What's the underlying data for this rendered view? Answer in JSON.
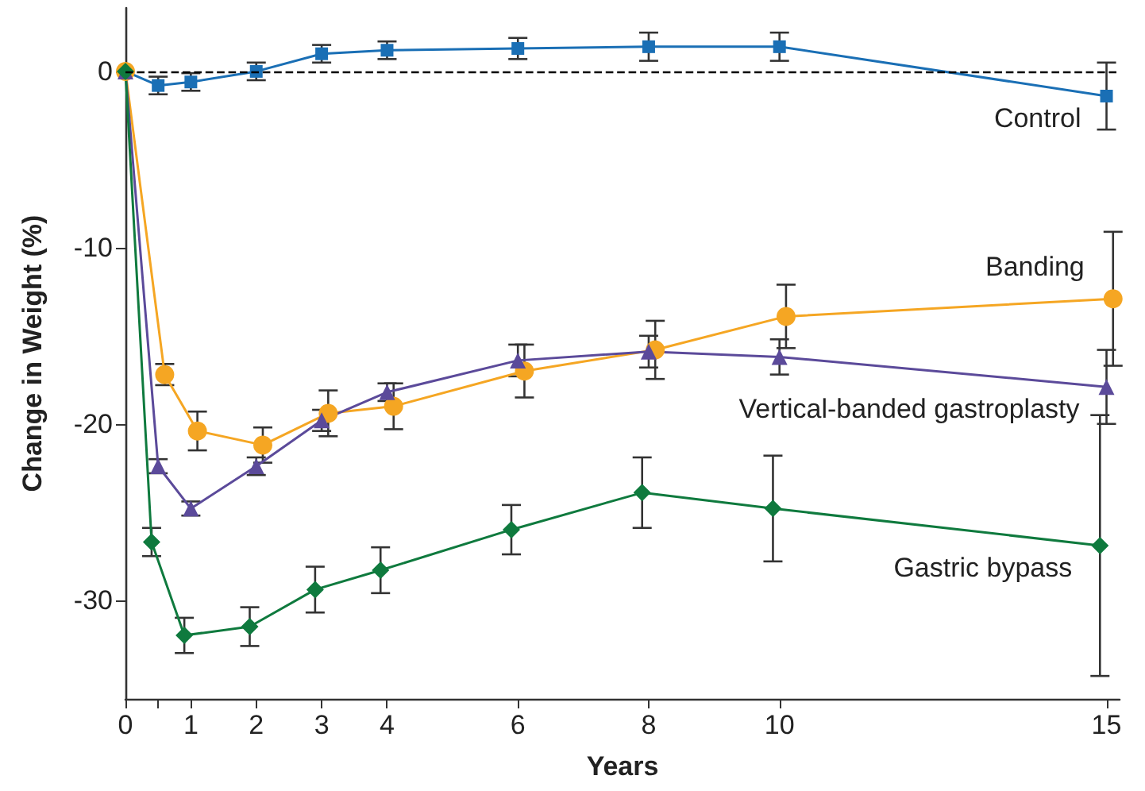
{
  "chart_data": {
    "type": "line",
    "xlabel": "Years",
    "ylabel": "Change in Weight (%)",
    "x": [
      0,
      0.5,
      1,
      2,
      3,
      4,
      6,
      8,
      10,
      15
    ],
    "series": [
      {
        "name": "Control",
        "color": "#1a6fb5",
        "marker": "square",
        "values": [
          0,
          -0.8,
          -0.6,
          0,
          1.0,
          1.2,
          1.3,
          1.4,
          1.4,
          -1.4
        ],
        "errors": [
          null,
          0.5,
          0.5,
          0.5,
          0.5,
          0.5,
          0.6,
          0.8,
          0.8,
          1.9
        ]
      },
      {
        "name": "Banding",
        "color": "#f5a623",
        "marker": "circle",
        "x": [
          0,
          0.6,
          1.1,
          2.1,
          3.1,
          4.1,
          6.1,
          8.1,
          10.1,
          15.1
        ],
        "values": [
          0,
          -17.2,
          -20.4,
          -21.2,
          -19.4,
          -19.0,
          -17.0,
          -15.8,
          -13.9,
          -12.9
        ],
        "errors": [
          null,
          0.6,
          1.1,
          1.0,
          1.3,
          1.3,
          1.5,
          1.65,
          1.8,
          3.8
        ]
      },
      {
        "name": "Vertical-banded gastroplasty",
        "color": "#5b4a9a",
        "marker": "triangle",
        "values": [
          0,
          -22.4,
          -24.8,
          -22.4,
          -19.8,
          -18.2,
          -16.4,
          -15.9,
          -16.2,
          -17.9
        ],
        "errors": [
          null,
          0.4,
          0.4,
          0.5,
          0.6,
          0.5,
          0.9,
          0.9,
          1.0,
          2.1
        ]
      },
      {
        "name": "Gastric bypass",
        "color": "#0f7a3e",
        "marker": "diamond",
        "x": [
          0,
          0.4,
          0.9,
          1.9,
          2.9,
          3.9,
          5.9,
          7.9,
          9.9,
          14.9
        ],
        "values": [
          0,
          -26.7,
          -32.0,
          -31.5,
          -29.4,
          -28.3,
          -26.0,
          -23.9,
          -24.8,
          -26.9
        ],
        "errors": [
          null,
          0.8,
          1.0,
          1.1,
          1.3,
          1.3,
          1.4,
          2.0,
          3.0,
          7.4
        ]
      }
    ],
    "xlim": [
      0,
      15.2
    ],
    "xticks": [
      0,
      {
        "value": 0.5,
        "label": null
      },
      1,
      2,
      3,
      4,
      6,
      8,
      10,
      15
    ],
    "ylim": [
      -35.6,
      3.6
    ],
    "yticks": [
      -30,
      -20,
      -10,
      0
    ],
    "ref_lines": [
      {
        "axis": "y",
        "value": 0,
        "label": null,
        "color": "#000000",
        "line_style": "dashed"
      }
    ],
    "grid": false,
    "legend": false,
    "line_style": "solid"
  }
}
